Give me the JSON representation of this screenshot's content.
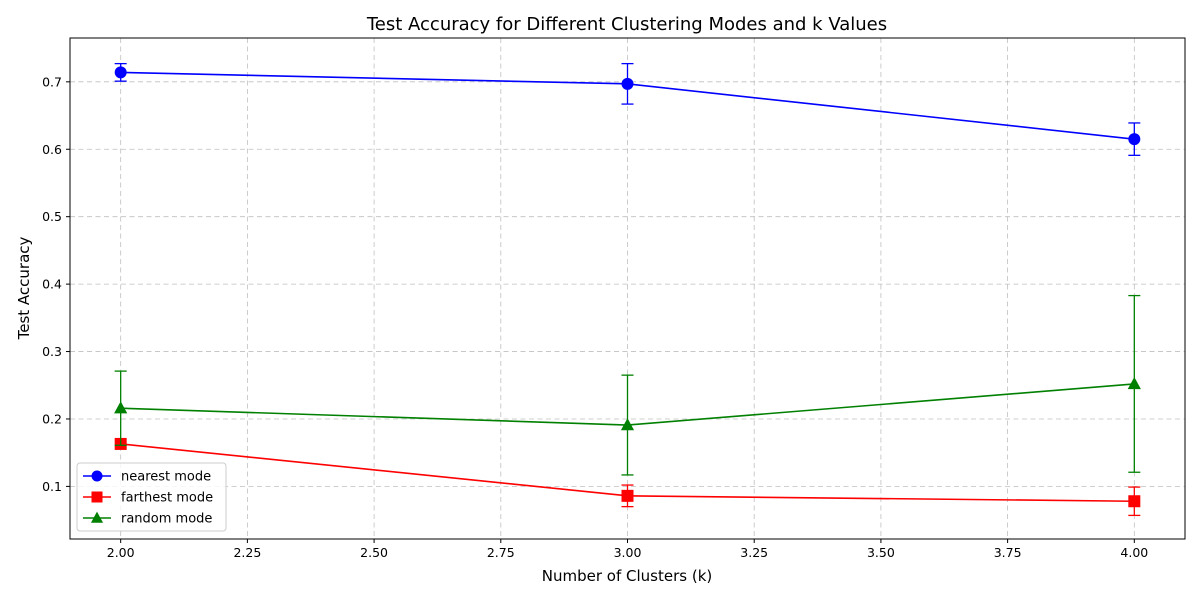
{
  "chart_data": {
    "type": "line",
    "title": "Test Accuracy for Different Clustering Modes and k Values",
    "xlabel": "Number of Clusters (k)",
    "ylabel": "Test Accuracy",
    "x": [
      2,
      3,
      4
    ],
    "xlim": [
      1.9,
      4.1
    ],
    "ylim": [
      0.022,
      0.765
    ],
    "xticks": [
      "2.00",
      "2.25",
      "2.50",
      "2.75",
      "3.00",
      "3.25",
      "3.50",
      "3.75",
      "4.00"
    ],
    "xtick_values": [
      2.0,
      2.25,
      2.5,
      2.75,
      3.0,
      3.25,
      3.5,
      3.75,
      4.0
    ],
    "yticks": [
      "0.1",
      "0.2",
      "0.3",
      "0.4",
      "0.5",
      "0.6",
      "0.7"
    ],
    "ytick_values": [
      0.1,
      0.2,
      0.3,
      0.4,
      0.5,
      0.6,
      0.7
    ],
    "grid": true,
    "legend_position": "lower-left",
    "series": [
      {
        "name": "nearest mode",
        "color": "#0000ff",
        "marker": "circle",
        "values": [
          0.714,
          0.697,
          0.615
        ],
        "errors": [
          0.013,
          0.03,
          0.024
        ]
      },
      {
        "name": "farthest mode",
        "color": "#ff0000",
        "marker": "square",
        "values": [
          0.163,
          0.086,
          0.078
        ],
        "errors": [
          0.0,
          0.016,
          0.021
        ]
      },
      {
        "name": "random mode",
        "color": "#008000",
        "marker": "triangle",
        "values": [
          0.216,
          0.191,
          0.252
        ],
        "errors": [
          0.055,
          0.074,
          0.131
        ]
      }
    ]
  }
}
